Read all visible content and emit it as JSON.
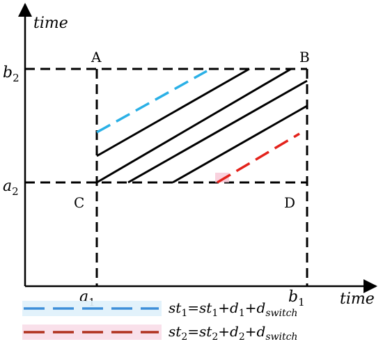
{
  "axes": {
    "y_label": "time",
    "x_label": "time",
    "y_ticks": {
      "b2": {
        "base": "b",
        "sub": "2"
      },
      "a2": {
        "base": "a",
        "sub": "2"
      }
    },
    "x_ticks": {
      "a1": {
        "base": "a",
        "sub": "1"
      },
      "b1": {
        "base": "b",
        "sub": "1"
      }
    }
  },
  "corners": {
    "A": "A",
    "B": "B",
    "C": "C",
    "D": "D"
  },
  "legend": {
    "item1": {
      "color": "#3e8fd9",
      "label": "st₁=st₁+d₁+d_switch",
      "parts": {
        "st_a": "st",
        "s_a": "1",
        "eq": "=",
        "st_b": "st",
        "s_b": "1",
        "plus1": "+",
        "d": "d",
        "s_d": "1",
        "plus2": "+",
        "d2": "d",
        "s_sw": "switch"
      }
    },
    "item2": {
      "color": "#b0321f",
      "label": "st₂=st₂+d₂+d_switch",
      "parts": {
        "st_a": "st",
        "s_a": "2",
        "eq": "=",
        "st_b": "st",
        "s_b": "2",
        "plus1": "+",
        "d": "d",
        "s_d": "2",
        "plus2": "+",
        "d2": "d",
        "s_sw": "switch"
      }
    }
  },
  "colors": {
    "blue_segment": "#2ab0e6",
    "red_segment": "#e3221b",
    "black": "#000000"
  }
}
